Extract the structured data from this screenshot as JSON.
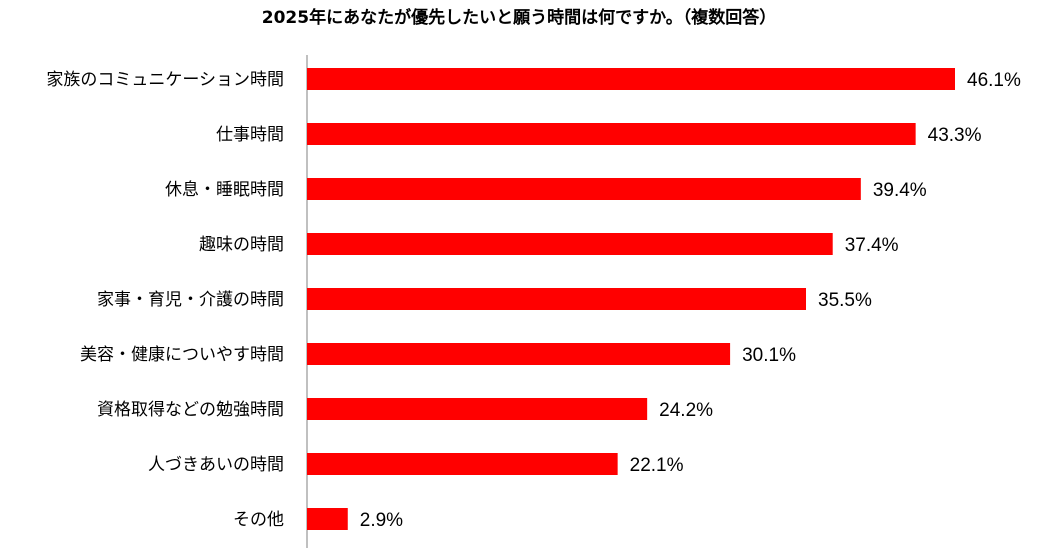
{
  "chart_data": {
    "type": "bar",
    "orientation": "horizontal",
    "title": "2025年にあなたが優先したいと願う時間は何ですか。（複数回答）",
    "categories": [
      "家族のコミュニケーション時間",
      "仕事時間",
      "休息・睡眠時間",
      "趣味の時間",
      "家事・育児・介護の時間",
      "美容・健康についやす時間",
      "資格取得などの勉強時間",
      "人づきあいの時間",
      "その他"
    ],
    "values": [
      46.1,
      43.3,
      39.4,
      37.4,
      35.5,
      30.1,
      24.2,
      22.1,
      2.9
    ],
    "value_labels": [
      "46.1%",
      "43.3%",
      "39.4%",
      "37.4%",
      "35.5%",
      "30.1%",
      "24.2%",
      "22.1%",
      "2.9%"
    ],
    "unit": "%",
    "xlim": [
      0,
      46.1
    ],
    "grid": false,
    "legend": "none",
    "bar_color": "#ff0000",
    "axis_color": "#808080"
  }
}
